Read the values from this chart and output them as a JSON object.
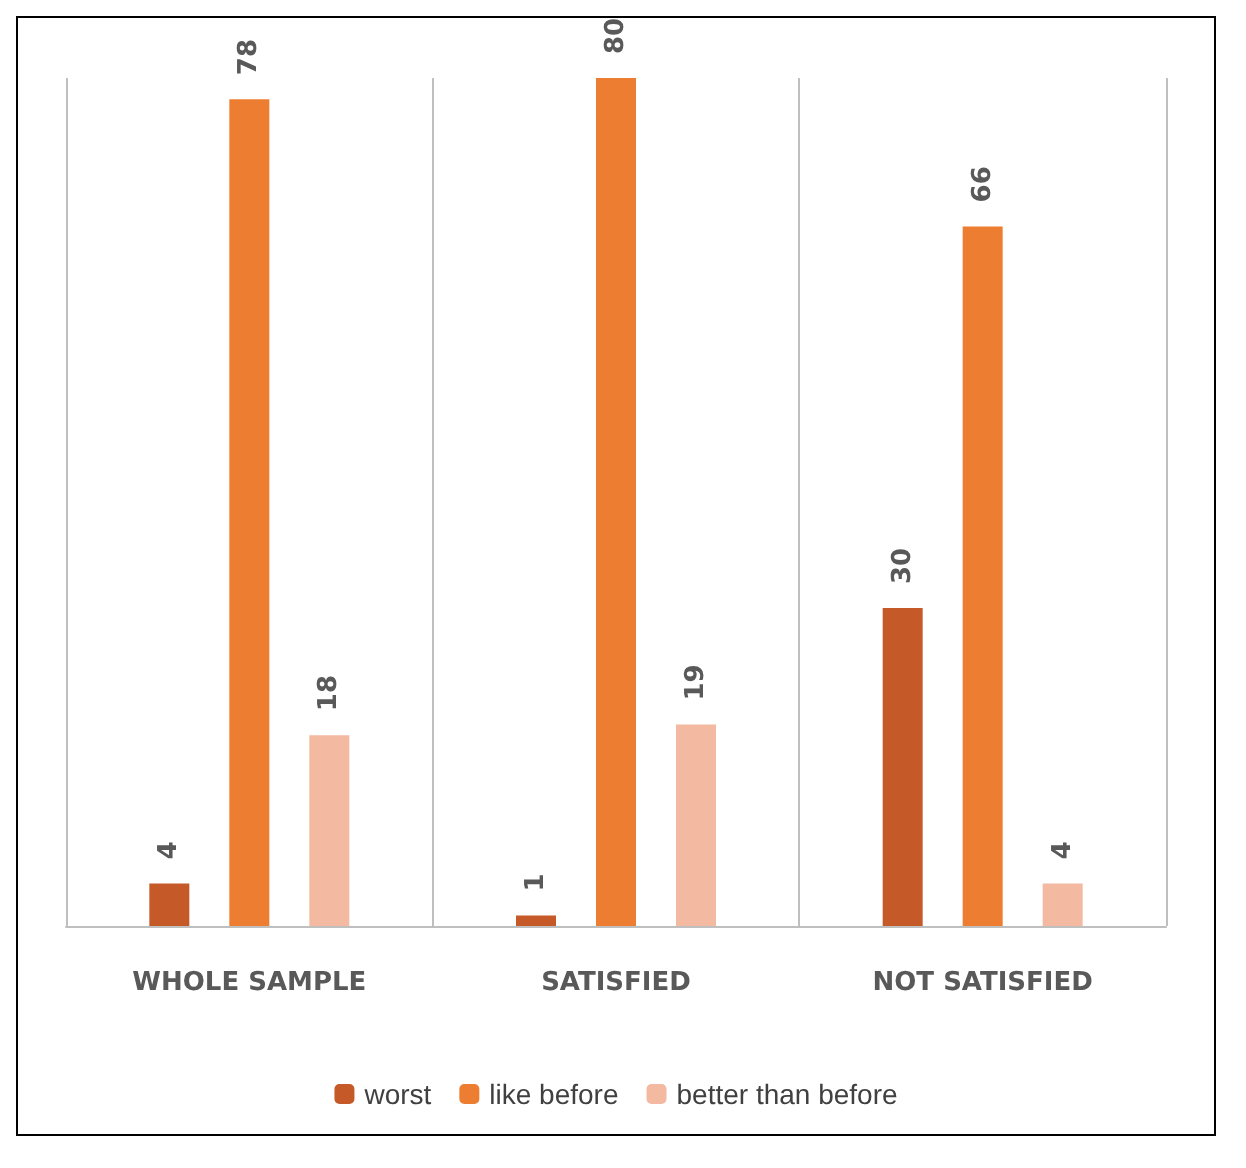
{
  "chart_data": {
    "type": "bar",
    "categories": [
      "WHOLE SAMPLE",
      "SATISFIED",
      "NOT SATISFIED"
    ],
    "series": [
      {
        "name": "worst",
        "color": "#c55a28",
        "values": [
          4,
          1,
          30
        ]
      },
      {
        "name": "like before",
        "color": "#ed7d31",
        "values": [
          78,
          80,
          66
        ]
      },
      {
        "name": "better than before",
        "color": "#f4b9a1",
        "values": [
          18,
          19,
          4
        ]
      }
    ],
    "data_labels": true,
    "grid": "x",
    "legend": "bottom",
    "tick_labels": "x"
  }
}
